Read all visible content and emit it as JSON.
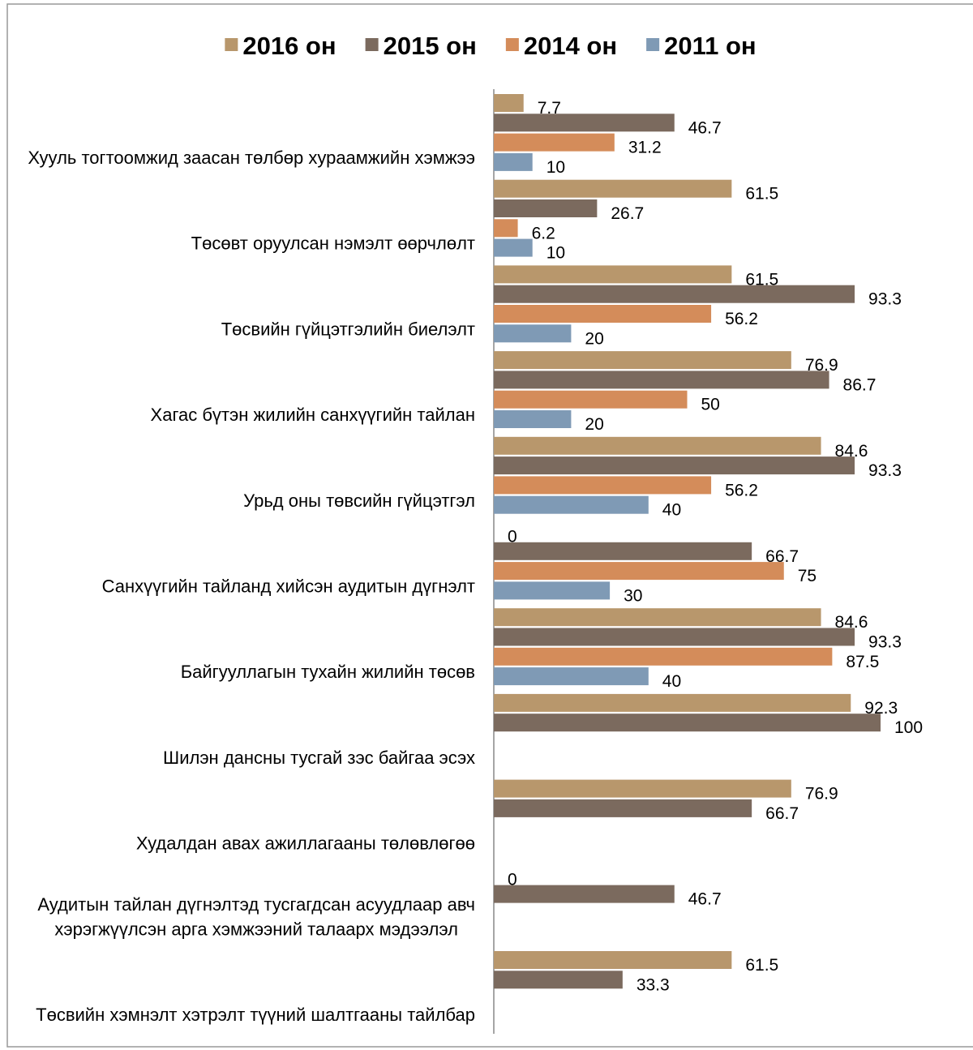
{
  "chart_data": {
    "type": "bar",
    "orientation": "horizontal",
    "categories": [
      "Хууль тогтоомжид заасан төлбөр хураамжийн хэмжээ",
      "Төсөвт оруулсан нэмэлт өөрчлөлт",
      "Төсвийн гүйцэтгэлийн биелэлт",
      "Хагас бүтэн жилийн санхүүгийн тайлан",
      "Урьд оны төвсийн гүйцэтгэл",
      "Санхүүгийн тайланд хийсэн аудитын дүгнэлт",
      "Байгууллагын тухайн жилийн төсөв",
      "Шилэн дансны тусгай зэс байгаа эсэх",
      "Худалдан авах ажиллагааны төлөвлөгөө",
      "Аудитын тайлан дүгнэлтэд тусгагдсан асуудлаар авч хэрэгжүүлсэн арга хэмжээний талаарх мэдээлэл",
      "Төсвийн хэмнэлт хэтрэлт түүний шалтгааны тайлбар"
    ],
    "series": [
      {
        "name": "2016 он",
        "color": "#b8976c",
        "values": [
          7.7,
          61.5,
          61.5,
          76.9,
          84.6,
          0,
          84.6,
          92.3,
          76.9,
          0,
          61.5
        ]
      },
      {
        "name": "2015 он",
        "color": "#7b6a5e",
        "values": [
          46.7,
          26.7,
          93.3,
          86.7,
          93.3,
          66.7,
          93.3,
          100,
          66.7,
          46.7,
          33.3
        ]
      },
      {
        "name": "2014 он",
        "color": "#d48c5a",
        "values": [
          31.2,
          6.2,
          56.2,
          50,
          56.2,
          75,
          87.5,
          null,
          null,
          null,
          null
        ]
      },
      {
        "name": "2011 он",
        "color": "#7f9ab5",
        "values": [
          10,
          10,
          20,
          20,
          40,
          30,
          40,
          null,
          null,
          null,
          null
        ]
      }
    ],
    "xlim": [
      0,
      100
    ],
    "legend": "top",
    "grid": false
  }
}
